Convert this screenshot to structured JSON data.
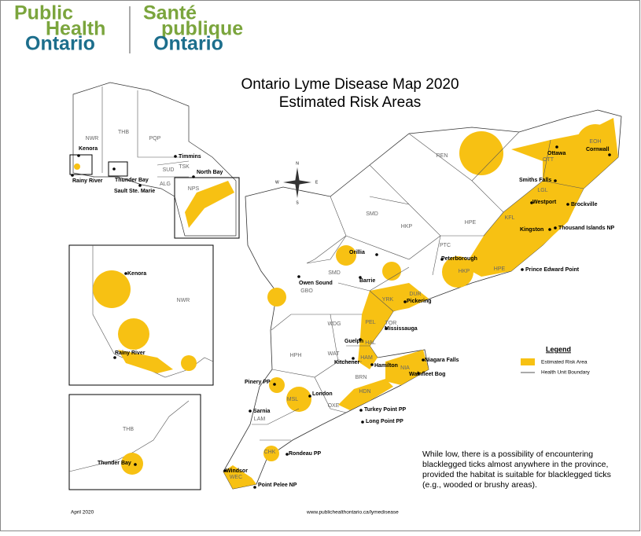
{
  "logo": {
    "english": [
      "Public",
      "Health",
      "Ontario"
    ],
    "french": [
      "Santé",
      "publique",
      "Ontario"
    ]
  },
  "title": [
    "Ontario Lyme Disease Map 2020",
    "Estimated Risk Areas"
  ],
  "compass": [
    "N",
    "S",
    "E",
    "W"
  ],
  "legend": {
    "title": "Legend",
    "items": [
      "Estimated Risk Area",
      "Health Unit Boundary"
    ]
  },
  "main_map": {
    "health_units": [
      "REN",
      "EOH",
      "OTT",
      "LGL",
      "KFL",
      "HPE",
      "HKP",
      "PTC",
      "SMD",
      "HKP",
      "HPE",
      "SMD",
      "DUR",
      "YRK",
      "PEL",
      "TOR",
      "HAL",
      "HAM",
      "NIA",
      "BRN",
      "HDN",
      "OXE",
      "MSL",
      "LAM",
      "CHK",
      "WEC",
      "HPH",
      "WDG",
      "WAT",
      "GBO"
    ],
    "places": [
      "Ottawa",
      "Cornwall",
      "Smiths Falls",
      "Brockville",
      "Westport",
      "Kingston",
      "Thousand Islands NP",
      "Prince Edward Point",
      "Peterborough",
      "Orillia",
      "Barrie",
      "Owen Sound",
      "Pickering",
      "Mississauga",
      "Guelph",
      "Kitchener",
      "Hamilton",
      "Niagara Falls",
      "Wainfleet Bog",
      "London",
      "Pinery PP",
      "Sarnia",
      "Turkey Point PP",
      "Long Point PP",
      "Rondeau PP",
      "Windsor",
      "Point Pelee NP"
    ]
  },
  "overview_inset": {
    "health_units": [
      "NWR",
      "THB",
      "PQP",
      "SUD",
      "TSK",
      "ALG",
      "NPS"
    ],
    "places": [
      "Kenora",
      "Rainy River",
      "Thunder Bay",
      "Sault Ste. Marie",
      "Timmins",
      "North Bay"
    ]
  },
  "kenora_inset": {
    "health_units": [
      "NWR"
    ],
    "places": [
      "Kenora",
      "Rainy River"
    ]
  },
  "thunder_bay_inset": {
    "health_units": [
      "THB"
    ],
    "places": [
      "Thunder Bay"
    ]
  },
  "note": [
    "While low, there is a possibility of encountering",
    "blacklegged ticks almost anywhere in the province,",
    "provided the habitat is suitable for blacklegged ticks",
    "(e.g., wooded or brushy areas)."
  ],
  "footer": {
    "date": "April 2020",
    "url": "www.publichealthontario.ca/lymedisease"
  }
}
